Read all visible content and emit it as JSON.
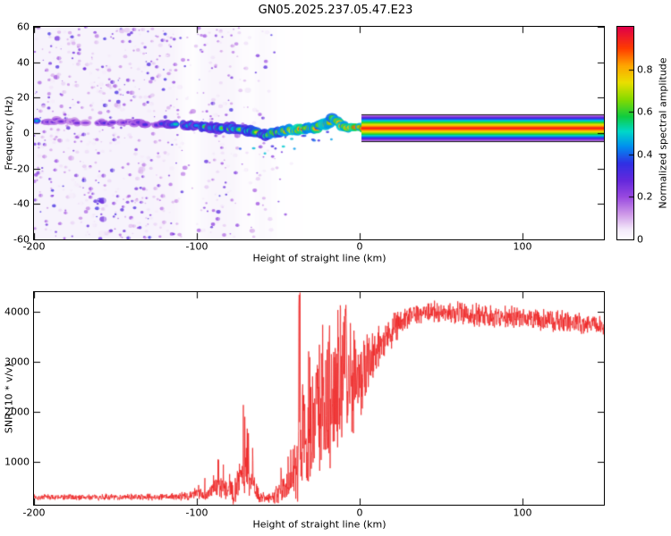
{
  "title": "GN05.2025.237.05.47.E23",
  "colors": {
    "snr_line": "#ee2222",
    "axis": "#000000",
    "background": "#ffffff",
    "noise_wash": "#ede2f7"
  },
  "chart_data": [
    {
      "type": "heatmap",
      "name": "spectrogram",
      "xlabel": "Height of straight line (km)",
      "ylabel": "Frequency (Hz)",
      "xlim": [
        -200,
        150
      ],
      "ylim": [
        -60,
        60
      ],
      "xticks": {
        "values": [
          -200,
          -100,
          0,
          100
        ],
        "labels": [
          "-200",
          "-100",
          "0",
          "100"
        ]
      },
      "yticks": {
        "values": [
          -60,
          -40,
          -20,
          0,
          20,
          40,
          60
        ],
        "labels": [
          "-60",
          "-40",
          "-20",
          "0",
          "20",
          "40",
          "60"
        ]
      },
      "colorbar": {
        "label": "Normalized spectral amplitude",
        "lim": [
          0,
          1
        ],
        "ticks": {
          "values": [
            0,
            0.2,
            0.4,
            0.6,
            0.8
          ],
          "labels": [
            "0",
            "0.2",
            "0.4",
            "0.6",
            "0.8"
          ]
        }
      },
      "colormap": [
        [
          0.0,
          "#ffffff"
        ],
        [
          0.05,
          "#f3e8fa"
        ],
        [
          0.12,
          "#cf9ae8"
        ],
        [
          0.2,
          "#9a4ae0"
        ],
        [
          0.28,
          "#6428dc"
        ],
        [
          0.36,
          "#3030e4"
        ],
        [
          0.44,
          "#0090f0"
        ],
        [
          0.51,
          "#00d8c8"
        ],
        [
          0.58,
          "#10cc40"
        ],
        [
          0.66,
          "#86da00"
        ],
        [
          0.74,
          "#eadf00"
        ],
        [
          0.82,
          "#ffa400"
        ],
        [
          0.9,
          "#ff3c00"
        ],
        [
          1.0,
          "#e00048"
        ]
      ],
      "noise_profile": [
        [
          -200,
          0.95
        ],
        [
          -130,
          0.95
        ],
        [
          -115,
          0.85
        ],
        [
          -108,
          0.3
        ],
        [
          -102,
          0.15
        ],
        [
          -97,
          0.55
        ],
        [
          -90,
          0.8
        ],
        [
          -78,
          0.7
        ],
        [
          -73,
          0.3
        ],
        [
          -66,
          0.25
        ],
        [
          -61,
          0.5
        ],
        [
          -56,
          0.35
        ],
        [
          -51,
          0.12
        ],
        [
          -46,
          0.06
        ],
        [
          -40,
          0.05
        ],
        [
          -32,
          0.03
        ],
        [
          -26,
          0.0
        ]
      ],
      "ridge": [
        [
          -200,
          7,
          0.6,
          4
        ],
        [
          -196,
          7,
          0.3,
          3
        ],
        [
          -185,
          7,
          0.25,
          3
        ],
        [
          -170,
          6,
          0.25,
          3
        ],
        [
          -155,
          6,
          0.3,
          3
        ],
        [
          -140,
          6,
          0.3,
          3
        ],
        [
          -128,
          5,
          0.35,
          3.5
        ],
        [
          -118,
          5,
          0.45,
          4
        ],
        [
          -110,
          5,
          0.5,
          4.5
        ],
        [
          -102,
          4,
          0.5,
          4.5
        ],
        [
          -95,
          4,
          0.55,
          5
        ],
        [
          -88,
          3,
          0.55,
          5
        ],
        [
          -80,
          3,
          0.6,
          5
        ],
        [
          -72,
          2,
          0.6,
          5
        ],
        [
          -65,
          1,
          0.62,
          5
        ],
        [
          -58,
          -1,
          0.65,
          5
        ],
        [
          -52,
          0,
          0.7,
          5
        ],
        [
          -47,
          1,
          0.72,
          5
        ],
        [
          -43,
          2,
          0.8,
          5
        ],
        [
          -38,
          2,
          0.88,
          5
        ],
        [
          -33,
          3,
          0.9,
          5
        ],
        [
          -28,
          3,
          0.88,
          5
        ],
        [
          -24,
          4,
          0.85,
          5
        ],
        [
          -20,
          5,
          0.8,
          5.5
        ],
        [
          -17,
          8,
          0.78,
          5.5
        ],
        [
          -14,
          7,
          0.85,
          5
        ],
        [
          -11,
          4,
          0.9,
          5
        ],
        [
          -7,
          3,
          0.92,
          4.5
        ],
        [
          -3,
          3,
          0.95,
          4
        ],
        [
          2,
          3,
          0.95,
          4
        ]
      ],
      "band": {
        "x_start": 1,
        "f_center": 3,
        "f_halfwidth": 8.2,
        "edge_lines": [
          10.6,
          -4.4
        ]
      }
    },
    {
      "type": "line",
      "name": "snr",
      "xlabel": "Height of straight line (km)",
      "ylabel": "SNR (10 * v/v)",
      "xlim": [
        -200,
        150
      ],
      "ylim": [
        140,
        4390
      ],
      "xticks": {
        "values": [
          -200,
          -100,
          0,
          100
        ],
        "labels": [
          "-200",
          "-100",
          "0",
          "100"
        ]
      },
      "yticks": {
        "values": [
          1000,
          2000,
          3000,
          4000
        ],
        "labels": [
          "1000",
          "2000",
          "3000",
          "4000"
        ]
      },
      "envelope": [
        [
          -200,
          290,
          70
        ],
        [
          -160,
          292,
          70
        ],
        [
          -130,
          295,
          75
        ],
        [
          -112,
          300,
          85
        ],
        [
          -104,
          330,
          110
        ],
        [
          -98,
          390,
          200
        ],
        [
          -94,
          330,
          120
        ],
        [
          -89,
          520,
          320
        ],
        [
          -85,
          470,
          280
        ],
        [
          -81,
          400,
          220
        ],
        [
          -77,
          420,
          300
        ],
        [
          -73,
          780,
          550
        ],
        [
          -69,
          900,
          650
        ],
        [
          -66,
          520,
          300
        ],
        [
          -62,
          310,
          140
        ],
        [
          -57,
          280,
          110
        ],
        [
          -52,
          330,
          180
        ],
        [
          -48,
          430,
          300
        ],
        [
          -44,
          600,
          450
        ],
        [
          -40,
          950,
          800
        ],
        [
          -37,
          1400,
          1200
        ],
        [
          -34,
          1300,
          1050
        ],
        [
          -31,
          1550,
          1300
        ],
        [
          -28,
          1750,
          1450
        ],
        [
          -25,
          1950,
          1550
        ],
        [
          -22,
          2100,
          1650
        ],
        [
          -19,
          2250,
          1700
        ],
        [
          -16,
          2400,
          1650
        ],
        [
          -13,
          2550,
          1600
        ],
        [
          -10,
          2700,
          1500
        ],
        [
          -7,
          2750,
          1300
        ],
        [
          -4,
          2650,
          1150
        ],
        [
          0,
          2750,
          950
        ],
        [
          4,
          2950,
          800
        ],
        [
          8,
          3150,
          700
        ],
        [
          12,
          3350,
          600
        ],
        [
          16,
          3500,
          500
        ],
        [
          20,
          3650,
          420
        ],
        [
          25,
          3800,
          330
        ],
        [
          30,
          3900,
          280
        ],
        [
          40,
          3980,
          260
        ],
        [
          55,
          3980,
          260
        ],
        [
          70,
          3940,
          260
        ],
        [
          85,
          3900,
          260
        ],
        [
          100,
          3870,
          250
        ],
        [
          115,
          3830,
          250
        ],
        [
          130,
          3780,
          250
        ],
        [
          142,
          3720,
          250
        ],
        [
          150,
          3740,
          250
        ]
      ],
      "spikes": [
        [
          -95,
          950
        ],
        [
          -90,
          880
        ],
        [
          -87,
          1120
        ],
        [
          -84,
          1000
        ],
        [
          -80,
          800
        ],
        [
          -71,
          2150
        ],
        [
          -69,
          1850
        ],
        [
          -66,
          1300
        ],
        [
          -48,
          900
        ],
        [
          -44,
          1400
        ],
        [
          -37,
          4380
        ],
        [
          -35,
          2600
        ],
        [
          -31,
          3300
        ],
        [
          -27,
          3000
        ],
        [
          -23,
          3950
        ],
        [
          -19,
          3500
        ],
        [
          -15,
          4050
        ],
        [
          -12,
          4350
        ],
        [
          -9,
          4150
        ],
        [
          -6,
          3900
        ]
      ]
    }
  ]
}
